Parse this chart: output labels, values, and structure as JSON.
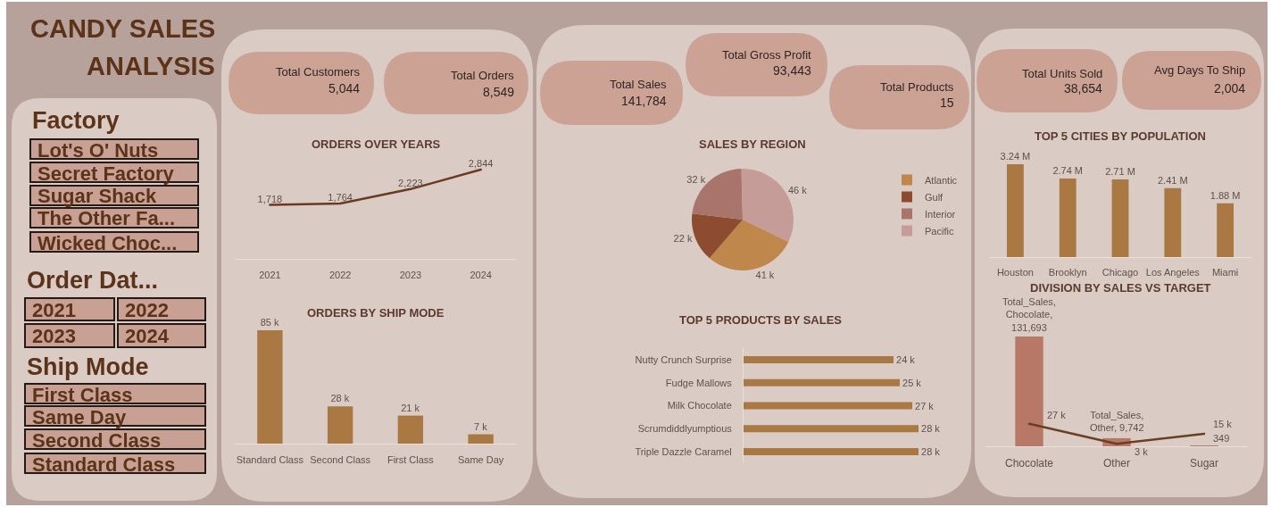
{
  "chart_data": [
    {
      "type": "other",
      "title": "CANDY SALES\nANALYSIS"
    },
    {
      "type": "other",
      "title": "Factory",
      "categories": [
        "Lot's O' Nuts",
        "Secret Factory",
        "Sugar Shack",
        "The Other Fa...",
        "Wicked Choc..."
      ]
    },
    {
      "type": "other",
      "title": "Order Dat...",
      "categories": [
        "2021",
        "2022",
        "2023",
        "2024"
      ]
    },
    {
      "type": "other",
      "title": "Ship Mode",
      "categories": [
        "First Class",
        "Same Day",
        "Second Class",
        "Standard Class"
      ]
    },
    {
      "type": "other",
      "categories": [
        "Total Customers",
        "Total Orders"
      ],
      "values": [
        5044,
        8549
      ],
      "value_labels": [
        "5,044",
        "8,549"
      ]
    },
    {
      "type": "line",
      "title": "ORDERS OVER YEARS",
      "categories": [
        "2021",
        "2022",
        "2023",
        "2024"
      ],
      "values": [
        1718,
        1764,
        2223,
        2844
      ],
      "value_labels": [
        "1,718",
        "1,764",
        "2,223",
        "2,844"
      ],
      "color": "#6b3a1f",
      "tick_labels": "x",
      "line_style": "solid"
    },
    {
      "type": "bar",
      "title": "ORDERS BY SHIP MODE",
      "categories": [
        "Standard Class",
        "Second Class",
        "First Class",
        "Same Day"
      ],
      "values": [
        85000,
        28000,
        21000,
        7000
      ],
      "value_labels": [
        "85 k",
        "28 k",
        "21 k",
        "7 k"
      ],
      "color": "#a97843",
      "tick_labels": "x"
    },
    {
      "type": "other",
      "categories": [
        "Total Sales",
        "Total Gross Profit",
        "Total Products"
      ],
      "values": [
        141784,
        93443,
        15
      ],
      "value_labels": [
        "141,784",
        "93,443",
        "15"
      ]
    },
    {
      "type": "pie",
      "title": "SALES BY REGION",
      "categories": [
        "Atlantic",
        "Gulf",
        "Interior",
        "Pacific"
      ],
      "values": [
        41000,
        22000,
        32000,
        46000
      ],
      "value_labels": [
        "41 k",
        "22 k",
        "32 k",
        "46 k"
      ],
      "colors": [
        "#bf874b",
        "#8d4c30",
        "#a8746c",
        "#c59c97"
      ],
      "legend": "right"
    },
    {
      "type": "bar",
      "orientation": "horizontal",
      "title": "TOP 5 PRODUCTS BY SALES",
      "categories": [
        "Nutty Crunch Surprise",
        "Fudge Mallows",
        "Milk Chocolate",
        "Scrumdiddlyumptious",
        "Triple Dazzle Caramel"
      ],
      "values": [
        24000,
        25000,
        27000,
        28000,
        28000
      ],
      "value_labels": [
        "24 k",
        "25 k",
        "27 k",
        "28 k",
        "28 k"
      ],
      "color": "#a97843",
      "tick_labels": "y"
    },
    {
      "type": "other",
      "categories": [
        "Total Units Sold",
        "Avg Days To Ship"
      ],
      "values": [
        38654,
        2004
      ],
      "value_labels": [
        "38,654",
        "2,004"
      ]
    },
    {
      "type": "bar",
      "title": "TOP 5 CITIES BY POPULATION",
      "categories": [
        "Houston",
        "Brooklyn",
        "Chicago",
        "Los Angeles",
        "Miami"
      ],
      "values": [
        3240000,
        2740000,
        2710000,
        2410000,
        1880000
      ],
      "value_labels": [
        "3.24 M",
        "2.74 M",
        "2.71 M",
        "2.41 M",
        "1.88 M"
      ],
      "color": "#a97843",
      "tick_labels": "x"
    },
    {
      "type": "bar",
      "title": "DIVISION BY SALES VS TARGET",
      "categories": [
        "Chocolate",
        "Other",
        "Sugar"
      ],
      "series": [
        {
          "type": "bar",
          "color": "#b87868",
          "values": [
            131693,
            9742,
            349
          ],
          "value_labels": [
            "Total_Sales,\nChocolate,\n131,693",
            "Total_Sales,\nOther, 9,742",
            "349"
          ]
        },
        {
          "type": "line",
          "color": "#6a4022",
          "values": [
            27000,
            3000,
            15000
          ],
          "value_labels": [
            "27 k",
            "3 k",
            "15 k"
          ]
        }
      ],
      "tick_labels": "x"
    }
  ]
}
